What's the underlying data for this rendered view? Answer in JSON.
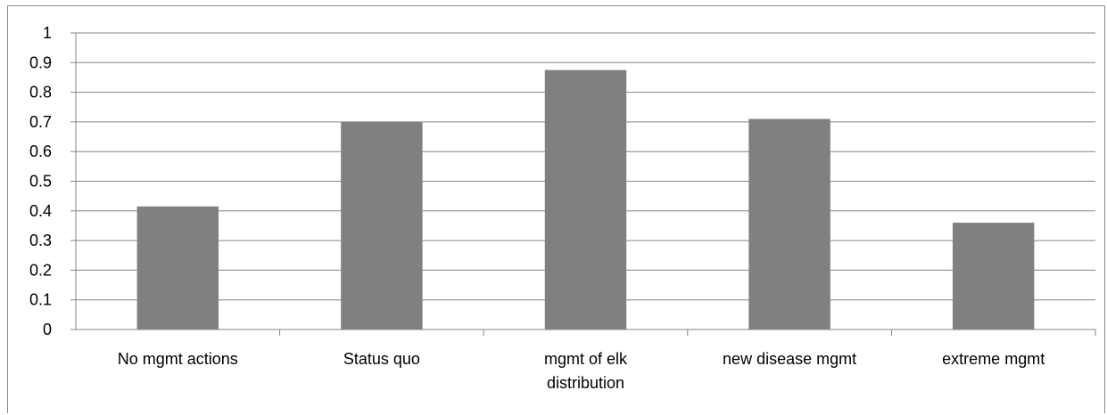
{
  "chart_data": {
    "type": "bar",
    "categories": [
      [
        "No mgmt actions"
      ],
      [
        "Status quo"
      ],
      [
        "mgmt of elk",
        "distribution"
      ],
      [
        "new disease mgmt"
      ],
      [
        "extreme mgmt"
      ]
    ],
    "values": [
      0.415,
      0.7,
      0.875,
      0.71,
      0.36
    ],
    "ylim": [
      0,
      1
    ],
    "yticks": [
      "0",
      "0.1",
      "0.2",
      "0.3",
      "0.4",
      "0.5",
      "0.6",
      "0.7",
      "0.8",
      "0.9",
      "1"
    ],
    "grid": true,
    "legend": "none",
    "colors": {
      "bar": "#808080",
      "grid": "#868686",
      "axis": "#868686"
    }
  }
}
